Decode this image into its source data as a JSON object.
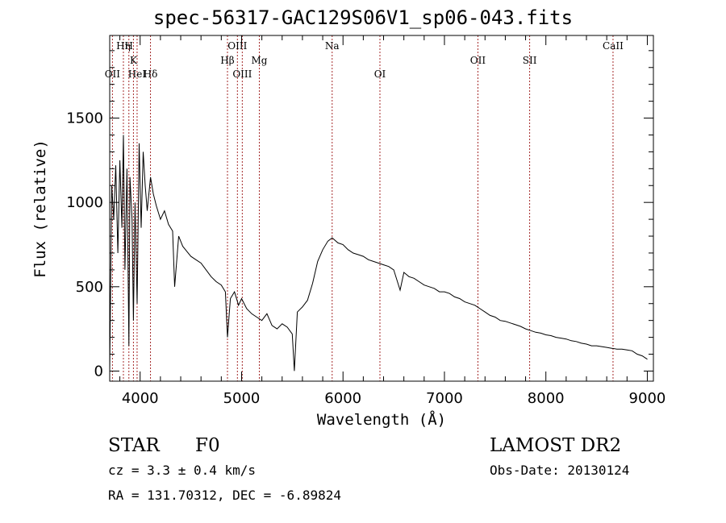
{
  "title": "spec-56317-GAC129S06V1_sp06-043.fits",
  "info": {
    "object_class": "STAR",
    "subclass": "F0",
    "survey": "LAMOST DR2",
    "cz": "cz = 3.3 ± 0.4 km/s",
    "obs_date": "Obs-Date: 20130124",
    "coords": "RA = 131.70312, DEC =  -6.89824"
  },
  "chart_data": {
    "type": "line",
    "title": "spec-56317-GAC129S06V1_sp06-043.fits",
    "xlabel": "Wavelength (Å)",
    "ylabel": "Flux (relative)",
    "xlim": [
      3700,
      9060
    ],
    "ylim": [
      -60,
      1990
    ],
    "x_ticks": [
      4000,
      5000,
      6000,
      7000,
      8000,
      9000
    ],
    "y_ticks": [
      0,
      500,
      1000,
      1500
    ],
    "line_color": "#000000",
    "marker_color": "#a52a2a",
    "lines": [
      {
        "label": "Hη",
        "x": 3835,
        "row": 1
      },
      {
        "label": "H",
        "x": 3889,
        "row": 1
      },
      {
        "label": "K",
        "x": 3934,
        "row": 2
      },
      {
        "label": "OII",
        "x": 3727,
        "row": 3
      },
      {
        "label": "HeI",
        "x": 3970,
        "row": 3
      },
      {
        "label": "Hδ",
        "x": 4102,
        "row": 3
      },
      {
        "label": "OIII",
        "x": 4959,
        "row": 1
      },
      {
        "label": "Hβ",
        "x": 4861,
        "row": 2
      },
      {
        "label": "OIII",
        "x": 5007,
        "row": 3
      },
      {
        "label": "Mg",
        "x": 5175,
        "row": 2
      },
      {
        "label": "Na",
        "x": 5893,
        "row": 1
      },
      {
        "label": "OI",
        "x": 6364,
        "row": 3
      },
      {
        "label": "OII",
        "x": 7330,
        "row": 2
      },
      {
        "label": "SII",
        "x": 7840,
        "row": 2
      },
      {
        "label": "CaII",
        "x": 8662,
        "row": 1
      }
    ],
    "spectrum": {
      "x": [
        3700,
        3720,
        3740,
        3760,
        3780,
        3800,
        3820,
        3835,
        3850,
        3870,
        3889,
        3900,
        3920,
        3934,
        3950,
        3970,
        3990,
        4010,
        4030,
        4050,
        4070,
        4102,
        4130,
        4160,
        4200,
        4240,
        4280,
        4320,
        4340,
        4380,
        4420,
        4460,
        4500,
        4550,
        4600,
        4650,
        4700,
        4750,
        4800,
        4840,
        4861,
        4890,
        4930,
        4970,
        5000,
        5050,
        5100,
        5150,
        5200,
        5250,
        5300,
        5350,
        5400,
        5450,
        5500,
        5520,
        5550,
        5600,
        5650,
        5700,
        5750,
        5800,
        5850,
        5893,
        5950,
        6000,
        6050,
        6100,
        6150,
        6200,
        6250,
        6300,
        6350,
        6400,
        6450,
        6500,
        6563,
        6600,
        6650,
        6700,
        6750,
        6800,
        6850,
        6900,
        6950,
        7000,
        7050,
        7100,
        7150,
        7200,
        7250,
        7300,
        7350,
        7400,
        7450,
        7500,
        7550,
        7600,
        7650,
        7700,
        7750,
        7800,
        7850,
        7900,
        7950,
        8000,
        8050,
        8100,
        8150,
        8200,
        8250,
        8300,
        8350,
        8400,
        8450,
        8500,
        8550,
        8600,
        8650,
        8700,
        8750,
        8800,
        8850,
        8900,
        8950,
        9000
      ],
      "y": [
        0,
        1100,
        900,
        1220,
        700,
        1250,
        850,
        1400,
        600,
        1200,
        150,
        1150,
        900,
        300,
        1000,
        400,
        1350,
        850,
        1300,
        1100,
        950,
        1150,
        1050,
        980,
        900,
        950,
        870,
        830,
        500,
        800,
        740,
        710,
        680,
        660,
        640,
        600,
        560,
        530,
        510,
        470,
        200,
        430,
        470,
        390,
        430,
        370,
        340,
        320,
        300,
        340,
        270,
        250,
        280,
        260,
        220,
        0,
        350,
        380,
        420,
        520,
        650,
        720,
        770,
        790,
        760,
        750,
        720,
        700,
        690,
        680,
        660,
        650,
        640,
        630,
        620,
        600,
        480,
        585,
        560,
        550,
        530,
        510,
        500,
        490,
        470,
        470,
        460,
        440,
        430,
        410,
        400,
        390,
        370,
        350,
        330,
        320,
        300,
        295,
        285,
        275,
        265,
        250,
        240,
        230,
        225,
        215,
        210,
        200,
        195,
        190,
        180,
        175,
        165,
        160,
        150,
        150,
        145,
        140,
        135,
        130,
        130,
        125,
        120,
        100,
        90,
        70
      ]
    }
  }
}
